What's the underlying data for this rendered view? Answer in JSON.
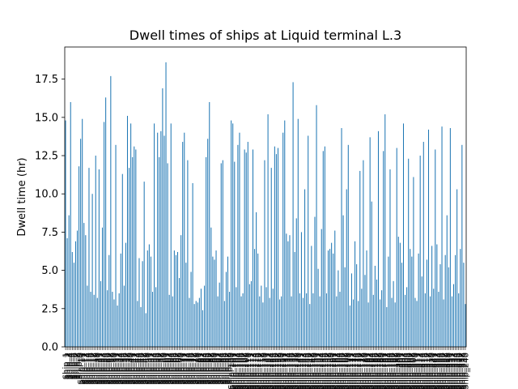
{
  "chart_data": {
    "type": "bar",
    "title": "Dwell times of ships at Liquid terminal L.3",
    "xlabel": "",
    "ylabel": "Dwell time (hr)",
    "ylim": [
      0,
      19.6
    ],
    "yticks": [
      0.0,
      2.5,
      5.0,
      7.5,
      10.0,
      12.5,
      15.0,
      17.5
    ],
    "ytick_labels": [
      "0.0",
      "2.5",
      "5.0",
      "7.5",
      "10.0",
      "12.5",
      "15.0",
      "17.5"
    ],
    "grid": false,
    "legend": "none",
    "bar_color": "#1f77b4",
    "categories": [
      "Ship_1",
      "Ship_2",
      "Ship_3",
      "Ship_4",
      "Ship_5",
      "Ship_6",
      "Ship_7",
      "Ship_8",
      "Ship_9",
      "Ship_10",
      "Ship_11",
      "Ship_12",
      "Ship_13",
      "Ship_14",
      "Ship_15",
      "Ship_16",
      "Ship_17",
      "Ship_18",
      "Ship_19",
      "Ship_20",
      "Ship_21",
      "Ship_22",
      "Ship_23",
      "Ship_24",
      "Ship_25",
      "Ship_26",
      "Ship_27",
      "Ship_28",
      "Ship_29",
      "Ship_30",
      "Ship_31",
      "Ship_32",
      "Ship_33",
      "Ship_34",
      "Ship_35",
      "Ship_36",
      "Ship_37",
      "Ship_38",
      "Ship_39",
      "Ship_40",
      "Ship_41",
      "Ship_42",
      "Ship_43",
      "Ship_44",
      "Ship_45",
      "Ship_46",
      "Ship_47",
      "Ship_48",
      "Ship_49",
      "Ship_50",
      "Ship_51",
      "Ship_52",
      "Ship_53",
      "Ship_54",
      "Ship_55",
      "Ship_56",
      "Ship_57",
      "Ship_58",
      "Ship_59",
      "Ship_60",
      "Ship_61",
      "Ship_62",
      "Ship_63",
      "Ship_64",
      "Ship_65",
      "Ship_66",
      "Ship_67",
      "Ship_68",
      "Ship_69",
      "Ship_70",
      "Ship_71",
      "Ship_72",
      "Ship_73",
      "Ship_74",
      "Ship_75",
      "Ship_76",
      "Ship_77",
      "Ship_78",
      "Ship_79",
      "Ship_80",
      "Ship_81",
      "Ship_82",
      "Ship_83",
      "Ship_84",
      "Ship_85",
      "Ship_86",
      "Ship_87",
      "Ship_88",
      "Ship_89",
      "Ship_90",
      "Ship_91",
      "Ship_92",
      "Ship_93",
      "Ship_94",
      "Ship_95",
      "Ship_96",
      "Ship_97",
      "Ship_98",
      "Ship_99",
      "Ship_100",
      "Ship_101",
      "Ship_102",
      "Ship_103",
      "Ship_104",
      "Ship_105",
      "Ship_106",
      "Ship_107",
      "Ship_108",
      "Ship_109",
      "Ship_110",
      "Ship_111",
      "Ship_112",
      "Ship_113",
      "Ship_114",
      "Ship_115",
      "Ship_116",
      "Ship_117",
      "Ship_118",
      "Ship_119",
      "Ship_120",
      "Ship_121",
      "Ship_122",
      "Ship_123",
      "Ship_124",
      "Ship_125",
      "Ship_126",
      "Ship_127",
      "Ship_128",
      "Ship_129",
      "Ship_130",
      "Ship_131",
      "Ship_132",
      "Ship_133",
      "Ship_134",
      "Ship_135",
      "Ship_136",
      "Ship_137",
      "Ship_138",
      "Ship_139",
      "Ship_140",
      "Ship_141",
      "Ship_142",
      "Ship_143",
      "Ship_144",
      "Ship_145",
      "Ship_146",
      "Ship_147",
      "Ship_148",
      "Ship_149",
      "Ship_150",
      "Ship_151",
      "Ship_152",
      "Ship_153",
      "Ship_154",
      "Ship_155",
      "Ship_156",
      "Ship_157",
      "Ship_158",
      "Ship_159",
      "Ship_160",
      "Ship_161",
      "Ship_162",
      "Ship_163",
      "Ship_164",
      "Ship_165",
      "Ship_166",
      "Ship_167",
      "Ship_168",
      "Ship_169",
      "Ship_170",
      "Ship_171",
      "Ship_172",
      "Ship_173",
      "Ship_174",
      "Ship_175",
      "Ship_176",
      "Ship_177",
      "Ship_178",
      "Ship_179",
      "Ship_180",
      "Ship_181",
      "Ship_182",
      "Ship_183",
      "Ship_184",
      "Ship_185",
      "Ship_186",
      "Ship_187",
      "Ship_188",
      "Ship_189",
      "Ship_190",
      "Ship_191",
      "Ship_192",
      "Ship_193",
      "Ship_194",
      "Ship_195",
      "Ship_196",
      "Ship_197",
      "Ship_198",
      "Ship_199",
      "Ship_200",
      "Ship_201",
      "Ship_202",
      "Ship_203",
      "Ship_204",
      "Ship_205",
      "Ship_206",
      "Ship_207",
      "Ship_208",
      "Ship_209",
      "Ship_210",
      "Ship_211",
      "Ship_212",
      "Ship_213",
      "Ship_214",
      "Ship_215",
      "Ship_216",
      "Ship_217",
      "Ship_218",
      "Ship_219",
      "Ship_220",
      "Ship_221",
      "Ship_222",
      "Ship_223",
      "Ship_224",
      "Ship_225",
      "Ship_226",
      "Ship_227",
      "Ship_228",
      "Ship_229",
      "Ship_230",
      "Ship_231",
      "Ship_232",
      "Ship_233",
      "Ship_234",
      "Ship_235",
      "Ship_236",
      "Ship_237",
      "Ship_238",
      "Ship_239",
      "Ship_240"
    ],
    "values": [
      14.8,
      7.1,
      8.6,
      16.0,
      6.2,
      5.5,
      6.9,
      7.6,
      11.8,
      13.6,
      14.9,
      8.1,
      7.3,
      4.0,
      11.7,
      3.6,
      10.0,
      3.4,
      12.5,
      3.2,
      11.6,
      4.3,
      7.8,
      14.7,
      16.3,
      3.7,
      6.0,
      17.7,
      3.6,
      3.1,
      13.2,
      2.7,
      3.5,
      6.1,
      11.3,
      4.0,
      6.8,
      15.1,
      11.7,
      14.6,
      12.4,
      13.1,
      12.9,
      3.0,
      5.8,
      2.6,
      5.6,
      10.8,
      2.2,
      6.3,
      6.7,
      5.9,
      3.6,
      14.6,
      3.9,
      14.0,
      12.4,
      14.1,
      16.9,
      13.8,
      18.6,
      12.0,
      3.4,
      14.6,
      3.3,
      6.3,
      6.0,
      6.2,
      4.5,
      7.3,
      13.4,
      14.0,
      5.5,
      12.2,
      3.2,
      4.9,
      10.7,
      2.8,
      3.0,
      2.9,
      3.2,
      3.8,
      2.4,
      4.0,
      12.4,
      13.6,
      16.0,
      7.8,
      5.9,
      5.7,
      6.3,
      3.3,
      4.2,
      12.0,
      12.2,
      3.0,
      4.9,
      5.9,
      3.6,
      14.8,
      14.6,
      12.1,
      3.9,
      13.2,
      14.0,
      3.3,
      3.5,
      12.9,
      12.7,
      13.4,
      4.1,
      4.3,
      12.9,
      6.4,
      8.8,
      6.1,
      3.3,
      4.0,
      2.9,
      12.2,
      3.9,
      15.2,
      3.2,
      11.7,
      3.8,
      13.1,
      12.6,
      13.0,
      3.1,
      3.3,
      14.0,
      14.8,
      7.4,
      6.9,
      7.3,
      3.3,
      17.3,
      6.2,
      8.4,
      14.9,
      3.5,
      7.5,
      3.2,
      10.3,
      3.5,
      13.8,
      2.8,
      6.6,
      3.5,
      8.5,
      15.8,
      5.1,
      3.3,
      7.7,
      12.8,
      13.1,
      3.5,
      6.3,
      6.4,
      6.8,
      6.1,
      7.6,
      3.3,
      5.0,
      3.6,
      14.3,
      8.6,
      5.2,
      10.3,
      13.2,
      2.7,
      4.8,
      3.1,
      6.9,
      5.4,
      3.0,
      11.5,
      3.8,
      12.2,
      4.7,
      6.3,
      2.9,
      13.7,
      9.5,
      3.4,
      5.3,
      4.4,
      14.1,
      3.1,
      3.7,
      12.8,
      15.2,
      2.6,
      5.9,
      11.6,
      3.2,
      4.3,
      2.9,
      13.0,
      7.2,
      6.8,
      5.5,
      14.6,
      3.4,
      3.9,
      12.3,
      6.4,
      5.9,
      11.1,
      3.2,
      3.0,
      6.1,
      12.5,
      4.6,
      13.4,
      3.5,
      5.7,
      14.2,
      3.3,
      6.6,
      3.8,
      12.9,
      6.7,
      3.6,
      5.4,
      14.4,
      3.1,
      6.0,
      8.6,
      5.2,
      14.3,
      3.3,
      4.1,
      6.0,
      10.3,
      3.5,
      6.4,
      13.2,
      5.5,
      2.8
    ]
  }
}
